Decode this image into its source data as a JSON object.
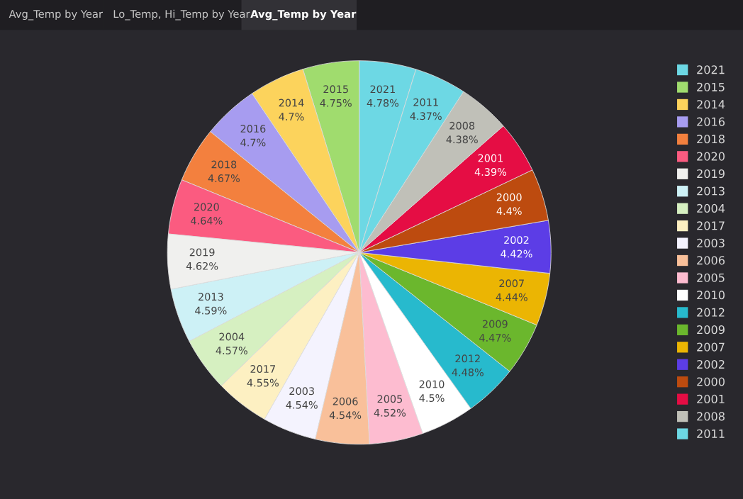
{
  "chart_data": {
    "type": "pie",
    "annotations": [
      "Avg_Temp by Year",
      "Lo_Temp, Hi_Temp by Year",
      "Avg_Temp by Year"
    ],
    "categories": [
      "2021",
      "2015",
      "2014",
      "2016",
      "2018",
      "2020",
      "2019",
      "2013",
      "2004",
      "2017",
      "2003",
      "2006",
      "2005",
      "2010",
      "2012",
      "2009",
      "2007",
      "2002",
      "2000",
      "2001",
      "2008",
      "2011"
    ],
    "values": [
      4.78,
      4.75,
      4.7,
      4.7,
      4.67,
      4.64,
      4.62,
      4.59,
      4.57,
      4.55,
      4.54,
      4.54,
      4.52,
      4.5,
      4.48,
      4.47,
      4.44,
      4.42,
      4.4,
      4.39,
      4.38,
      4.37
    ],
    "value_labels": [
      "4.78%",
      "4.75%",
      "4.7%",
      "4.7%",
      "4.67%",
      "4.64%",
      "4.62%",
      "4.59%",
      "4.57%",
      "4.55%",
      "4.54%",
      "4.54%",
      "4.52%",
      "4.5%",
      "4.48%",
      "4.47%",
      "4.44%",
      "4.42%",
      "4.4%",
      "4.39%",
      "4.38%",
      "4.37%"
    ],
    "colors": [
      "#6dd8e4",
      "#a0dc6e",
      "#fcd35c",
      "#a79cf0",
      "#f3803e",
      "#fb5b80",
      "#f0f0ee",
      "#cdf1f6",
      "#d6f0c1",
      "#fdf0c2",
      "#f4f3fe",
      "#f9c09a",
      "#fdbcd0",
      "#ffffff",
      "#27bacd",
      "#6bb72d",
      "#ebb503",
      "#5c3de6",
      "#bd4b0f",
      "#e50d44",
      "#c0c0b8",
      "#6dd8e4"
    ],
    "legend": "right"
  }
}
